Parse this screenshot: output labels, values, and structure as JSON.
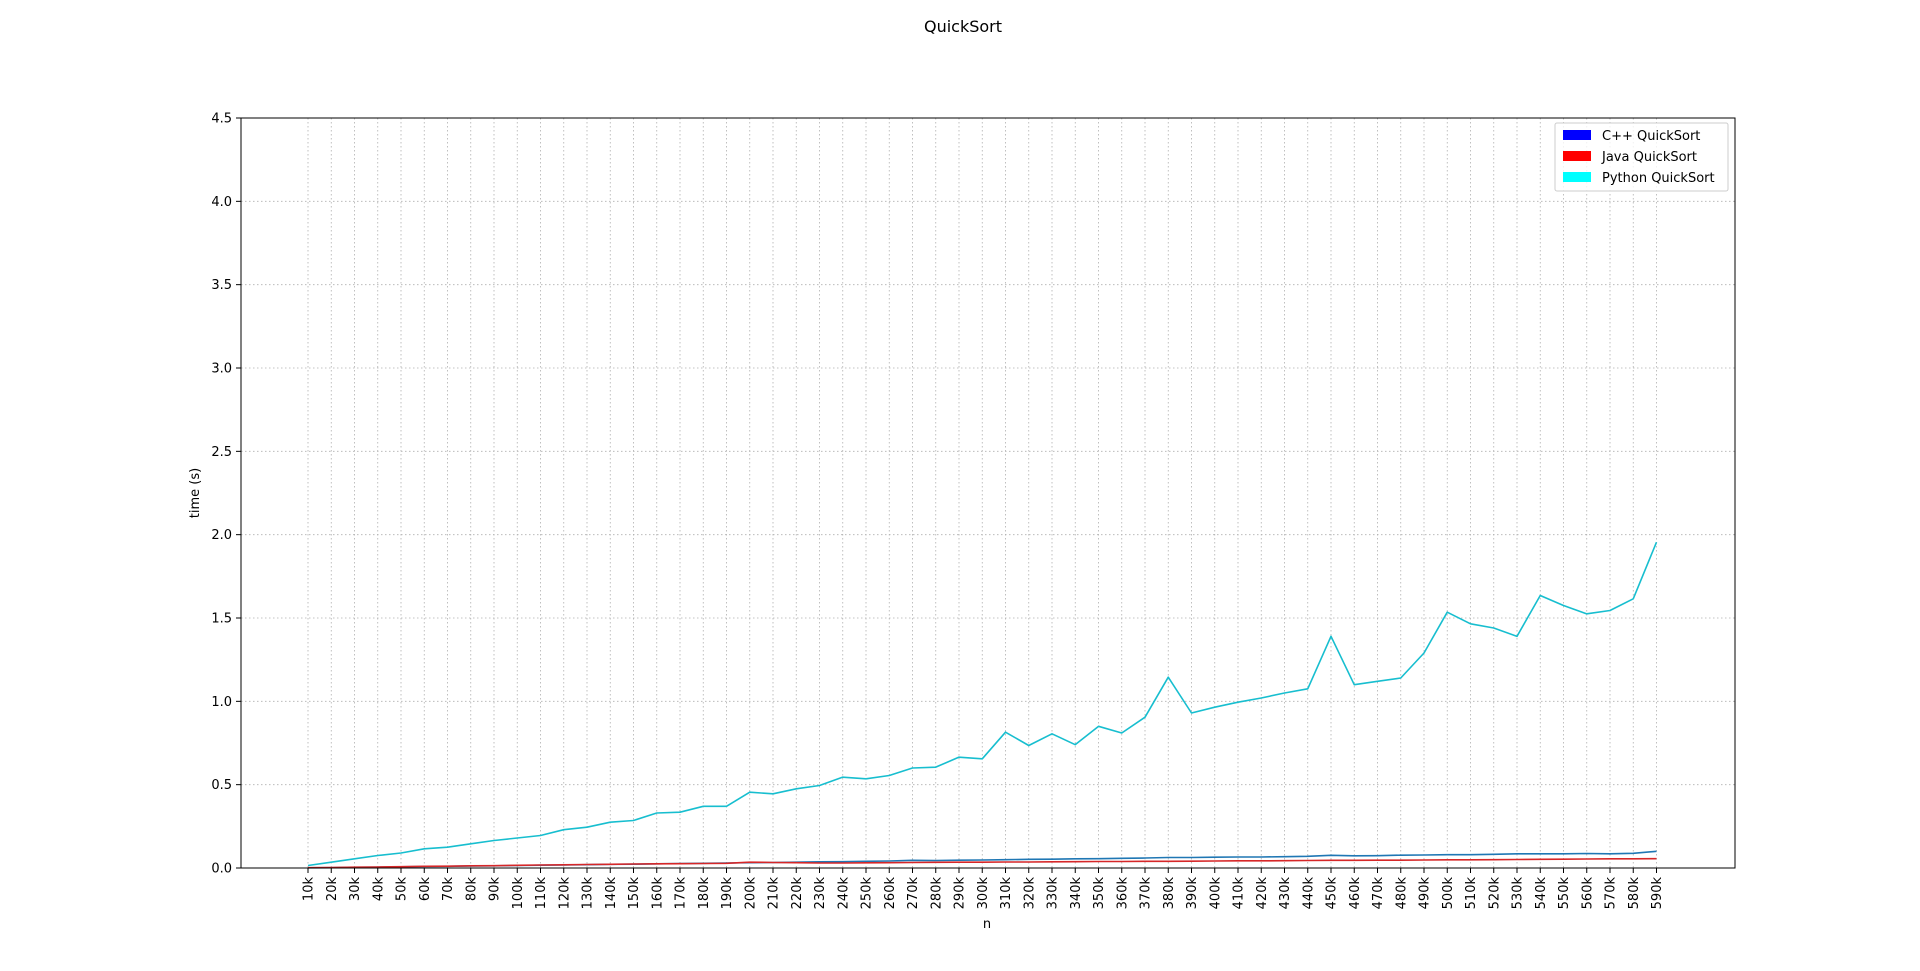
{
  "chart_data": {
    "type": "line",
    "title": "QuickSort",
    "xlabel": "n",
    "ylabel": "time (s)",
    "ylim": [
      0,
      4.5
    ],
    "y_ticks": [
      "0.0",
      "0.5",
      "1.0",
      "1.5",
      "2.0",
      "2.5",
      "3.0",
      "3.5",
      "4.0",
      "4.5"
    ],
    "grid": true,
    "legend_position": "top-right",
    "categories": [
      "10k",
      "20k",
      "30k",
      "40k",
      "50k",
      "60k",
      "70k",
      "80k",
      "90k",
      "100k",
      "110k",
      "120k",
      "130k",
      "140k",
      "150k",
      "160k",
      "170k",
      "180k",
      "190k",
      "200k",
      "210k",
      "220k",
      "230k",
      "240k",
      "250k",
      "260k",
      "270k",
      "280k",
      "290k",
      "300k",
      "310k",
      "320k",
      "330k",
      "340k",
      "350k",
      "360k",
      "370k",
      "380k",
      "390k",
      "400k",
      "410k",
      "420k",
      "430k",
      "440k",
      "450k",
      "460k",
      "470k",
      "480k",
      "490k",
      "500k",
      "510k",
      "520k",
      "530k",
      "540k",
      "550k",
      "560k",
      "570k",
      "580k",
      "590k"
    ],
    "series": [
      {
        "name": "C++ QuickSort",
        "legend_color": "#0000ff",
        "line_color": "#1f77b4",
        "values": [
          0.001,
          0.002,
          0.004,
          0.005,
          0.007,
          0.009,
          0.01,
          0.012,
          0.013,
          0.015,
          0.017,
          0.018,
          0.02,
          0.022,
          0.023,
          0.025,
          0.027,
          0.028,
          0.03,
          0.032,
          0.033,
          0.035,
          0.037,
          0.038,
          0.04,
          0.042,
          0.046,
          0.045,
          0.047,
          0.048,
          0.05,
          0.052,
          0.053,
          0.055,
          0.056,
          0.058,
          0.06,
          0.063,
          0.063,
          0.065,
          0.066,
          0.066,
          0.068,
          0.07,
          0.076,
          0.073,
          0.074,
          0.077,
          0.078,
          0.08,
          0.08,
          0.082,
          0.085,
          0.085,
          0.085,
          0.087,
          0.085,
          0.088,
          0.1
        ]
      },
      {
        "name": "Java QuickSort",
        "legend_color": "#ff0000",
        "line_color": "#d62728",
        "values": [
          0.002,
          0.003,
          0.005,
          0.006,
          0.008,
          0.01,
          0.011,
          0.013,
          0.014,
          0.016,
          0.018,
          0.019,
          0.021,
          0.022,
          0.024,
          0.025,
          0.026,
          0.027,
          0.028,
          0.035,
          0.033,
          0.032,
          0.03,
          0.03,
          0.031,
          0.032,
          0.033,
          0.034,
          0.035,
          0.035,
          0.036,
          0.036,
          0.037,
          0.038,
          0.039,
          0.039,
          0.04,
          0.04,
          0.041,
          0.042,
          0.043,
          0.043,
          0.044,
          0.045,
          0.046,
          0.046,
          0.047,
          0.047,
          0.048,
          0.049,
          0.049,
          0.05,
          0.051,
          0.052,
          0.053,
          0.054,
          0.055,
          0.055,
          0.056
        ]
      },
      {
        "name": "Python QuickSort",
        "legend_color": "#00ffff",
        "line_color": "#17becf",
        "values": [
          0.015,
          0.035,
          0.055,
          0.075,
          0.09,
          0.115,
          0.125,
          0.145,
          0.165,
          0.18,
          0.195,
          0.23,
          0.245,
          0.275,
          0.285,
          0.33,
          0.335,
          0.37,
          0.37,
          0.455,
          0.445,
          0.475,
          0.495,
          0.545,
          0.535,
          0.555,
          0.6,
          0.605,
          0.665,
          0.655,
          0.815,
          0.735,
          0.805,
          0.74,
          0.85,
          0.81,
          0.905,
          1.145,
          0.93,
          0.965,
          0.995,
          1.02,
          1.05,
          1.075,
          1.39,
          1.1,
          1.12,
          1.14,
          1.29,
          1.535,
          1.465,
          1.44,
          1.39,
          1.635,
          1.575,
          1.525,
          1.545,
          1.615,
          1.955
        ]
      }
    ]
  }
}
